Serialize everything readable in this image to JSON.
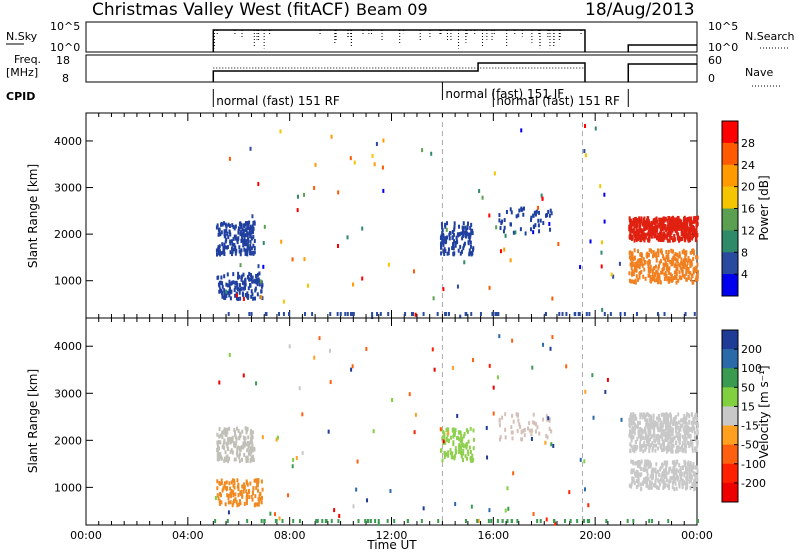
{
  "header": {
    "title": "Christmas Valley West (fitACF)",
    "beam": "Beam 09",
    "date": "18/Aug/2013"
  },
  "summary_panels": {
    "nsky_label": "N.Sky",
    "nsky_ticks": [
      "10^5",
      "10^0"
    ],
    "nsearch_label": "N.Search",
    "nsearch_ticks": [
      "10^5",
      "10^0"
    ],
    "freq_label_line1": "Freq.",
    "freq_label_line2": "[MHz]",
    "freq_ticks": [
      "18",
      "8"
    ],
    "nave_label": "Nave",
    "nave_ticks": [
      "60",
      "0"
    ],
    "cpid_label": "CPID",
    "cpid_segments": [
      {
        "label": "normal (fast) 151 RF",
        "start_hr": 5.0,
        "end_hr": 14.0
      },
      {
        "label": "normal (fast) 151 IF",
        "start_hr": 14.0,
        "end_hr": 19.5
      },
      {
        "label": "normal (fast) 151 RF",
        "start_hr": 16.0,
        "end_hr": 21.3
      }
    ]
  },
  "chart_data": [
    {
      "type": "scatter",
      "name": "power-panel",
      "ylabel": "Slant Range [km]",
      "yticks": [
        1000,
        2000,
        3000,
        4000
      ],
      "xticks": [
        "00:00",
        "04:00",
        "08:00",
        "12:00",
        "16:00",
        "20:00",
        "00:00"
      ],
      "xlim_hours": [
        0,
        24
      ],
      "ylim_km": [
        200,
        4600
      ],
      "dashed_markers_hr": [
        14.0,
        19.5
      ],
      "colorbar": {
        "label": "Power [dB]",
        "ticks": [
          "28",
          "24",
          "20",
          "16",
          "12",
          "8",
          "4"
        ],
        "colors": [
          "#ff0000",
          "#ff5a00",
          "#ff9a00",
          "#f5c500",
          "#5aa050",
          "#2f8a6a",
          "#2a4aa0",
          "#0000ee"
        ]
      },
      "scatter_groups": [
        {
          "x_hr": [
            5.1,
            6.6
          ],
          "y_km": [
            1600,
            2300
          ],
          "color": "#2040a0",
          "count": 180
        },
        {
          "x_hr": [
            5.1,
            6.9
          ],
          "y_km": [
            650,
            1200
          ],
          "color": "#2040a0",
          "count": 130
        },
        {
          "x_hr": [
            13.9,
            15.2
          ],
          "y_km": [
            1600,
            2300
          ],
          "color": "#2040a0",
          "count": 120
        },
        {
          "x_hr": [
            16.2,
            18.3
          ],
          "y_km": [
            2050,
            2600
          ],
          "color": "#2040a0",
          "count": 50
        },
        {
          "x_hr": [
            21.3,
            24
          ],
          "y_km": [
            1900,
            2400
          ],
          "color": "#e02010",
          "count": 500
        },
        {
          "x_hr": [
            21.3,
            24
          ],
          "y_km": [
            1000,
            1700
          ],
          "color": "#f08020",
          "count": 320
        }
      ]
    },
    {
      "type": "scatter",
      "name": "velocity-panel",
      "ylabel": "Slant Range [km]",
      "yticks": [
        1000,
        2000,
        3000,
        4000
      ],
      "xticks": [
        "00:00",
        "04:00",
        "08:00",
        "12:00",
        "16:00",
        "20:00",
        "00:00"
      ],
      "xlim_hours": [
        0,
        24
      ],
      "ylim_km": [
        200,
        4600
      ],
      "xlabel": "Time UT",
      "dashed_markers_hr": [
        14.0,
        19.5
      ],
      "colorbar": {
        "label": "Velocity [m s⁻¹]",
        "ticks": [
          "200",
          "100",
          "50",
          "15",
          "-15",
          "-50",
          "-100",
          "-200"
        ],
        "colors": [
          "#1e3c96",
          "#2a6aa8",
          "#3a9a50",
          "#80d040",
          "#c8c8c8",
          "#ffa020",
          "#ff6010",
          "#ff2000",
          "#ee0000"
        ]
      },
      "scatter_groups": [
        {
          "x_hr": [
            5.1,
            6.6
          ],
          "y_km": [
            1600,
            2300
          ],
          "color": "#c0c0b8",
          "count": 160
        },
        {
          "x_hr": [
            5.1,
            6.9
          ],
          "y_km": [
            650,
            1200
          ],
          "color": "#f08a20",
          "count": 120
        },
        {
          "x_hr": [
            13.9,
            15.2
          ],
          "y_km": [
            1600,
            2300
          ],
          "color": "#90d050",
          "count": 110
        },
        {
          "x_hr": [
            16.2,
            18.3
          ],
          "y_km": [
            2050,
            2600
          ],
          "color": "#d4c0b8",
          "count": 50
        },
        {
          "x_hr": [
            21.3,
            24
          ],
          "y_km": [
            1800,
            2600
          ],
          "color": "#c8c8c8",
          "count": 500
        },
        {
          "x_hr": [
            21.3,
            24
          ],
          "y_km": [
            1000,
            1600
          ],
          "color": "#c8c8c8",
          "count": 300
        }
      ]
    }
  ]
}
